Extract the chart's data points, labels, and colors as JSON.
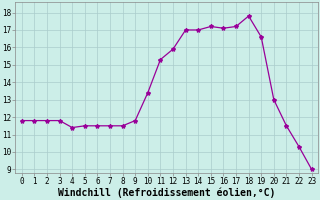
{
  "hours": [
    0,
    1,
    2,
    3,
    4,
    5,
    6,
    7,
    8,
    9,
    10,
    11,
    12,
    13,
    14,
    15,
    16,
    17,
    18,
    19,
    20,
    21,
    22,
    23
  ],
  "values": [
    11.8,
    11.8,
    11.8,
    11.8,
    11.4,
    11.5,
    11.5,
    11.5,
    11.5,
    11.8,
    13.4,
    15.3,
    15.9,
    17.0,
    17.0,
    17.2,
    17.1,
    17.2,
    17.8,
    16.6,
    13.0,
    11.5,
    10.3,
    9.0
  ],
  "line_color": "#990099",
  "marker": "*",
  "marker_size": 3.0,
  "line_width": 0.9,
  "bg_color": "#cceee8",
  "grid_color": "#aacccc",
  "xlabel": "Windchill (Refroidissement éolien,°C)",
  "ylim": [
    8.8,
    18.6
  ],
  "xlim": [
    -0.5,
    23.5
  ],
  "yticks": [
    9,
    10,
    11,
    12,
    13,
    14,
    15,
    16,
    17,
    18
  ],
  "xticks": [
    0,
    1,
    2,
    3,
    4,
    5,
    6,
    7,
    8,
    9,
    10,
    11,
    12,
    13,
    14,
    15,
    16,
    17,
    18,
    19,
    20,
    21,
    22,
    23
  ],
  "tick_fontsize": 5.5,
  "xlabel_fontsize": 7.0
}
